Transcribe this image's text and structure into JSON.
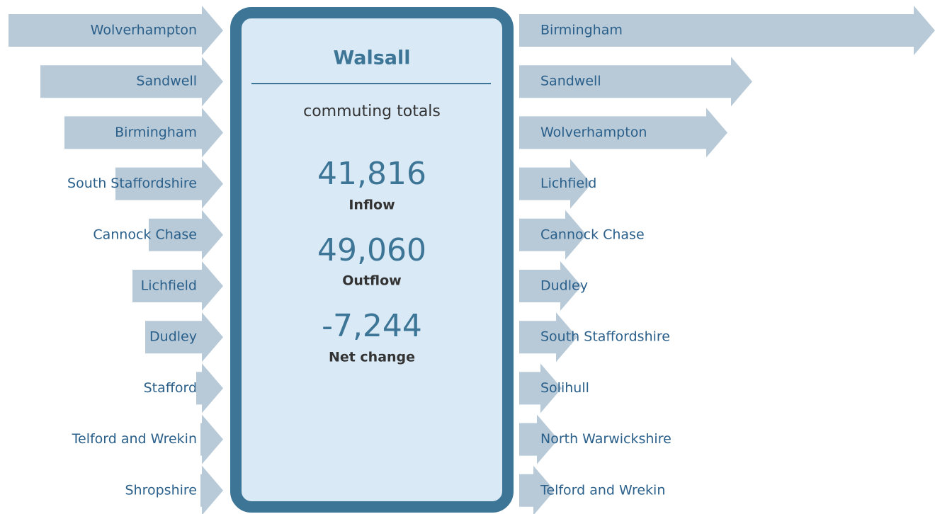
{
  "panel": {
    "title": "Walsall",
    "subtitle": "commuting totals",
    "stats": [
      {
        "value": "41,816",
        "label": "Inflow"
      },
      {
        "value": "49,060",
        "label": "Outflow"
      },
      {
        "value": "-7,244",
        "label": "Net change"
      }
    ]
  },
  "inflows": [
    {
      "name": "Wolverhampton",
      "flow": 303
    },
    {
      "name": "Sandwell",
      "flow": 258
    },
    {
      "name": "Birmingham",
      "flow": 224
    },
    {
      "name": "South Staffordshire",
      "flow": 152
    },
    {
      "name": "Cannock Chase",
      "flow": 105
    },
    {
      "name": "Lichfield",
      "flow": 128
    },
    {
      "name": "Dudley",
      "flow": 110
    },
    {
      "name": "Stafford",
      "flow": 38
    },
    {
      "name": "Telford and Wrekin",
      "flow": 32
    },
    {
      "name": "Shropshire",
      "flow": 32
    }
  ],
  "outflows": [
    {
      "name": "Birmingham",
      "flow": 587
    },
    {
      "name": "Sandwell",
      "flow": 329
    },
    {
      "name": "Wolverhampton",
      "flow": 294
    },
    {
      "name": "Lichfield",
      "flow": 102
    },
    {
      "name": "Cannock Chase",
      "flow": 95
    },
    {
      "name": "Dudley",
      "flow": 88
    },
    {
      "name": "South Staffordshire",
      "flow": 82
    },
    {
      "name": "Solihull",
      "flow": 60
    },
    {
      "name": "North Warwickshire",
      "flow": 55
    },
    {
      "name": "Telford and Wrekin",
      "flow": 50
    }
  ]
}
